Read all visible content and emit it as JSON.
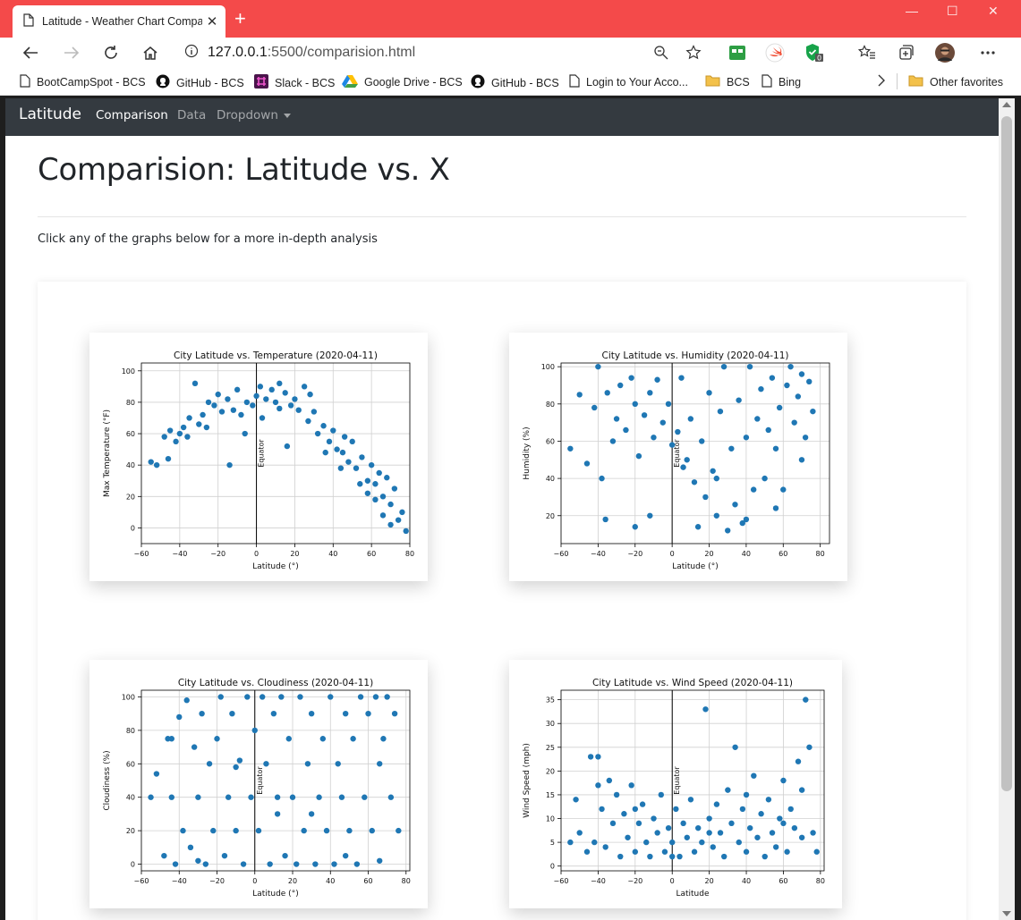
{
  "browser": {
    "tab_title": "Latitude - Weather Chart Compa",
    "new_tab_symbol": "+",
    "url_host": "127.0.0.1",
    "url_path": ":5500/comparision.html",
    "bookmarks": [
      {
        "label": "BootCampSpot - BCS",
        "icon": "page-icon"
      },
      {
        "label": "GitHub - BCS",
        "icon": "github-icon"
      },
      {
        "label": "Slack - BCS",
        "icon": "slack-icon"
      },
      {
        "label": "Google Drive - BCS",
        "icon": "drive-icon"
      },
      {
        "label": "GitHub - BCS",
        "icon": "github-icon"
      },
      {
        "label": "Login to Your Acco...",
        "icon": "page-icon"
      },
      {
        "label": "BCS",
        "icon": "folder-icon"
      },
      {
        "label": "Bing",
        "icon": "page-icon"
      }
    ],
    "other_favorites": "Other favorites",
    "accent": "#f44a4a"
  },
  "navbar": {
    "brand": "Latitude",
    "links": [
      "Comparison",
      "Data",
      "Dropdown"
    ],
    "bg": "#343a40"
  },
  "page": {
    "heading": "Comparision: Latitude vs. X",
    "lead": "Click any of the graphs below for a more in-depth analysis"
  },
  "chart_data": [
    {
      "type": "scatter",
      "title": "City Latitude vs. Temperature (2020-04-11)",
      "xlabel": "Latitude (°)",
      "ylabel": "Max Temperature (°F)",
      "xlim": [
        -60,
        80
      ],
      "ylim": [
        -10,
        105
      ],
      "xticks": [
        "−60",
        "−40",
        "−20",
        "0",
        "20",
        "40",
        "60",
        "80"
      ],
      "yticks": [
        "0",
        "20",
        "40",
        "60",
        "80",
        "100"
      ],
      "grid": true,
      "annotation": "Equator",
      "color": "#1f77b4",
      "points": [
        [
          -55,
          42
        ],
        [
          -52,
          40
        ],
        [
          -48,
          58
        ],
        [
          -45,
          62
        ],
        [
          -42,
          55
        ],
        [
          -40,
          60
        ],
        [
          -38,
          64
        ],
        [
          -35,
          70
        ],
        [
          -32,
          92
        ],
        [
          -30,
          66
        ],
        [
          -28,
          72
        ],
        [
          -25,
          80
        ],
        [
          -22,
          78
        ],
        [
          -20,
          85
        ],
        [
          -18,
          74
        ],
        [
          -15,
          82
        ],
        [
          -12,
          75
        ],
        [
          -10,
          88
        ],
        [
          -8,
          72
        ],
        [
          -5,
          80
        ],
        [
          -2,
          78
        ],
        [
          0,
          84
        ],
        [
          2,
          90
        ],
        [
          5,
          82
        ],
        [
          8,
          88
        ],
        [
          10,
          80
        ],
        [
          12,
          76
        ],
        [
          15,
          86
        ],
        [
          18,
          78
        ],
        [
          20,
          82
        ],
        [
          22,
          75
        ],
        [
          25,
          90
        ],
        [
          27,
          68
        ],
        [
          30,
          74
        ],
        [
          32,
          60
        ],
        [
          35,
          65
        ],
        [
          38,
          55
        ],
        [
          40,
          62
        ],
        [
          42,
          50
        ],
        [
          45,
          48
        ],
        [
          48,
          42
        ],
        [
          50,
          55
        ],
        [
          52,
          38
        ],
        [
          55,
          45
        ],
        [
          58,
          30
        ],
        [
          60,
          40
        ],
        [
          62,
          28
        ],
        [
          64,
          35
        ],
        [
          66,
          20
        ],
        [
          68,
          32
        ],
        [
          70,
          15
        ],
        [
          72,
          25
        ],
        [
          74,
          5
        ],
        [
          76,
          10
        ],
        [
          78,
          -2
        ],
        [
          -36,
          58
        ],
        [
          -26,
          64
        ],
        [
          -14,
          40
        ],
        [
          3,
          70
        ],
        [
          16,
          52
        ],
        [
          28,
          85
        ],
        [
          36,
          48
        ],
        [
          44,
          38
        ],
        [
          54,
          28
        ],
        [
          62,
          18
        ],
        [
          70,
          2
        ],
        [
          -46,
          44
        ],
        [
          -6,
          60
        ],
        [
          12,
          92
        ],
        [
          46,
          58
        ],
        [
          58,
          22
        ],
        [
          66,
          8
        ]
      ]
    },
    {
      "type": "scatter",
      "title": "City Latitude vs. Humidity (2020-04-11)",
      "xlabel": "Latitude (°)",
      "ylabel": "Humidity (%)",
      "xlim": [
        -60,
        85
      ],
      "ylim": [
        5,
        102
      ],
      "xticks": [
        "−60",
        "−40",
        "−20",
        "0",
        "20",
        "40",
        "60",
        "80"
      ],
      "yticks": [
        "20",
        "40",
        "60",
        "80",
        "100"
      ],
      "grid": true,
      "annotation": "Equator",
      "color": "#1f77b4",
      "points": [
        [
          -55,
          56
        ],
        [
          -50,
          85
        ],
        [
          -46,
          48
        ],
        [
          -42,
          78
        ],
        [
          -40,
          100
        ],
        [
          -38,
          40
        ],
        [
          -35,
          86
        ],
        [
          -32,
          60
        ],
        [
          -30,
          72
        ],
        [
          -28,
          90
        ],
        [
          -25,
          66
        ],
        [
          -22,
          94
        ],
        [
          -20,
          80
        ],
        [
          -18,
          52
        ],
        [
          -15,
          74
        ],
        [
          -12,
          86
        ],
        [
          -10,
          62
        ],
        [
          -8,
          93
        ],
        [
          -5,
          70
        ],
        [
          -2,
          80
        ],
        [
          0,
          58
        ],
        [
          3,
          65
        ],
        [
          5,
          94
        ],
        [
          8,
          50
        ],
        [
          10,
          72
        ],
        [
          12,
          38
        ],
        [
          14,
          14
        ],
        [
          16,
          60
        ],
        [
          18,
          30
        ],
        [
          20,
          86
        ],
        [
          22,
          44
        ],
        [
          24,
          20
        ],
        [
          26,
          76
        ],
        [
          28,
          100
        ],
        [
          30,
          12
        ],
        [
          32,
          56
        ],
        [
          34,
          26
        ],
        [
          36,
          82
        ],
        [
          38,
          16
        ],
        [
          40,
          62
        ],
        [
          42,
          100
        ],
        [
          44,
          34
        ],
        [
          46,
          72
        ],
        [
          48,
          88
        ],
        [
          50,
          40
        ],
        [
          52,
          66
        ],
        [
          54,
          94
        ],
        [
          56,
          56
        ],
        [
          58,
          78
        ],
        [
          60,
          34
        ],
        [
          62,
          90
        ],
        [
          64,
          100
        ],
        [
          66,
          70
        ],
        [
          68,
          84
        ],
        [
          70,
          96
        ],
        [
          72,
          62
        ],
        [
          74,
          92
        ],
        [
          76,
          76
        ],
        [
          -36,
          18
        ],
        [
          -20,
          14
        ],
        [
          -12,
          20
        ],
        [
          6,
          46
        ],
        [
          24,
          40
        ],
        [
          40,
          18
        ],
        [
          56,
          24
        ],
        [
          70,
          50
        ]
      ]
    },
    {
      "type": "scatter",
      "title": "City Latitude vs. Cloudiness (2020-04-11)",
      "xlabel": "Latitude (°)",
      "ylabel": "Cloudiness (%)",
      "xlim": [
        -60,
        82
      ],
      "ylim": [
        -4,
        104
      ],
      "xticks": [
        "−60",
        "−40",
        "−20",
        "0",
        "20",
        "40",
        "60",
        "80"
      ],
      "yticks": [
        "0",
        "20",
        "40",
        "60",
        "80",
        "100"
      ],
      "grid": true,
      "annotation": "Equator",
      "color": "#1f77b4",
      "points": [
        [
          -55,
          40
        ],
        [
          -52,
          54
        ],
        [
          -48,
          5
        ],
        [
          -46,
          75
        ],
        [
          -44,
          40
        ],
        [
          -42,
          0
        ],
        [
          -40,
          88
        ],
        [
          -38,
          20
        ],
        [
          -36,
          98
        ],
        [
          -34,
          10
        ],
        [
          -32,
          70
        ],
        [
          -30,
          40
        ],
        [
          -28,
          90
        ],
        [
          -26,
          0
        ],
        [
          -24,
          60
        ],
        [
          -22,
          20
        ],
        [
          -20,
          75
        ],
        [
          -18,
          100
        ],
        [
          -16,
          5
        ],
        [
          -14,
          40
        ],
        [
          -12,
          90
        ],
        [
          -10,
          20
        ],
        [
          -8,
          62
        ],
        [
          -6,
          0
        ],
        [
          -4,
          100
        ],
        [
          -2,
          40
        ],
        [
          0,
          80
        ],
        [
          2,
          20
        ],
        [
          4,
          100
        ],
        [
          6,
          60
        ],
        [
          8,
          0
        ],
        [
          10,
          90
        ],
        [
          12,
          40
        ],
        [
          14,
          100
        ],
        [
          16,
          5
        ],
        [
          18,
          75
        ],
        [
          20,
          40
        ],
        [
          22,
          0
        ],
        [
          24,
          100
        ],
        [
          26,
          20
        ],
        [
          28,
          60
        ],
        [
          30,
          90
        ],
        [
          32,
          0
        ],
        [
          34,
          40
        ],
        [
          36,
          75
        ],
        [
          38,
          20
        ],
        [
          40,
          100
        ],
        [
          42,
          0
        ],
        [
          44,
          60
        ],
        [
          46,
          40
        ],
        [
          48,
          90
        ],
        [
          50,
          20
        ],
        [
          52,
          75
        ],
        [
          54,
          0
        ],
        [
          56,
          100
        ],
        [
          58,
          40
        ],
        [
          60,
          90
        ],
        [
          62,
          20
        ],
        [
          64,
          100
        ],
        [
          66,
          60
        ],
        [
          68,
          75
        ],
        [
          70,
          100
        ],
        [
          72,
          40
        ],
        [
          74,
          90
        ],
        [
          76,
          20
        ],
        [
          -44,
          75
        ],
        [
          -30,
          2
        ],
        [
          -10,
          58
        ],
        [
          12,
          30
        ],
        [
          30,
          30
        ],
        [
          48,
          5
        ],
        [
          66,
          2
        ]
      ]
    },
    {
      "type": "scatter",
      "title": "City Latitude vs. Wind Speed (2020-04-11)",
      "xlabel": "Latitude",
      "ylabel": "Wind Speed (mph)",
      "xlim": [
        -60,
        82
      ],
      "ylim": [
        -1,
        37
      ],
      "xticks": [
        "−60",
        "−40",
        "−20",
        "0",
        "20",
        "40",
        "60",
        "80"
      ],
      "yticks": [
        "0",
        "5",
        "10",
        "15",
        "20",
        "25",
        "30",
        "35"
      ],
      "grid": true,
      "annotation": "Equator",
      "color": "#1f77b4",
      "points": [
        [
          -55,
          5
        ],
        [
          -52,
          14
        ],
        [
          -50,
          7
        ],
        [
          -46,
          3
        ],
        [
          -44,
          23
        ],
        [
          -42,
          5
        ],
        [
          -40,
          23
        ],
        [
          -38,
          12
        ],
        [
          -36,
          4
        ],
        [
          -34,
          18
        ],
        [
          -32,
          9
        ],
        [
          -30,
          15
        ],
        [
          -28,
          2
        ],
        [
          -26,
          11
        ],
        [
          -24,
          6
        ],
        [
          -22,
          17
        ],
        [
          -20,
          3
        ],
        [
          -18,
          9
        ],
        [
          -16,
          13
        ],
        [
          -14,
          5
        ],
        [
          -12,
          2
        ],
        [
          -10,
          10
        ],
        [
          -8,
          7
        ],
        [
          -6,
          15
        ],
        [
          -4,
          3
        ],
        [
          -2,
          8
        ],
        [
          0,
          5
        ],
        [
          2,
          12
        ],
        [
          4,
          2
        ],
        [
          6,
          9
        ],
        [
          8,
          6
        ],
        [
          10,
          14
        ],
        [
          12,
          3
        ],
        [
          14,
          8
        ],
        [
          16,
          5
        ],
        [
          18,
          33
        ],
        [
          20,
          10
        ],
        [
          22,
          4
        ],
        [
          24,
          13
        ],
        [
          26,
          7
        ],
        [
          28,
          2
        ],
        [
          30,
          16
        ],
        [
          32,
          9
        ],
        [
          34,
          25
        ],
        [
          36,
          5
        ],
        [
          38,
          12
        ],
        [
          40,
          3
        ],
        [
          42,
          8
        ],
        [
          44,
          19
        ],
        [
          46,
          6
        ],
        [
          48,
          11
        ],
        [
          50,
          2
        ],
        [
          52,
          14
        ],
        [
          54,
          7
        ],
        [
          56,
          4
        ],
        [
          58,
          10
        ],
        [
          60,
          18
        ],
        [
          62,
          3
        ],
        [
          64,
          12
        ],
        [
          66,
          8
        ],
        [
          68,
          22
        ],
        [
          70,
          16
        ],
        [
          72,
          35
        ],
        [
          74,
          25
        ],
        [
          76,
          7
        ],
        [
          78,
          3
        ],
        [
          -40,
          17
        ],
        [
          -20,
          12
        ],
        [
          0,
          2
        ],
        [
          20,
          7
        ],
        [
          40,
          15
        ],
        [
          60,
          9
        ],
        [
          70,
          6
        ]
      ]
    }
  ]
}
